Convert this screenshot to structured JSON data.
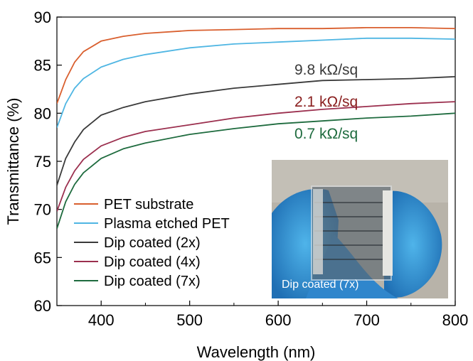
{
  "chart_data": {
    "type": "line",
    "xlabel": "Wavelength (nm)",
    "ylabel": "Transmittance (%)",
    "xlim": [
      350,
      800
    ],
    "ylim": [
      60,
      90
    ],
    "xticks": [
      400,
      500,
      600,
      700,
      800
    ],
    "yticks": [
      60,
      65,
      70,
      75,
      80,
      85,
      90
    ],
    "grid": false,
    "legend_position": "bottom-left",
    "series": [
      {
        "name": "PET substrate",
        "color": "#d95f2e",
        "x": [
          350,
          360,
          370,
          380,
          400,
          425,
          450,
          500,
          550,
          600,
          650,
          700,
          750,
          800
        ],
        "y": [
          81.0,
          83.5,
          85.3,
          86.4,
          87.5,
          88.0,
          88.3,
          88.6,
          88.7,
          88.8,
          88.8,
          88.9,
          88.9,
          88.8
        ]
      },
      {
        "name": "Plasma etched PET",
        "color": "#4fb6e3",
        "x": [
          350,
          360,
          370,
          380,
          400,
          425,
          450,
          500,
          550,
          600,
          650,
          700,
          750,
          800
        ],
        "y": [
          78.5,
          81.0,
          82.6,
          83.6,
          84.8,
          85.6,
          86.1,
          86.8,
          87.2,
          87.4,
          87.6,
          87.8,
          87.8,
          87.7
        ]
      },
      {
        "name": "Dip coated (2x)",
        "color": "#3a3a3a",
        "x": [
          350,
          360,
          370,
          380,
          400,
          425,
          450,
          500,
          550,
          600,
          650,
          700,
          750,
          800
        ],
        "y": [
          72.5,
          75.3,
          77.0,
          78.3,
          79.8,
          80.6,
          81.2,
          82.0,
          82.6,
          83.0,
          83.4,
          83.5,
          83.6,
          83.8
        ]
      },
      {
        "name": "Dip coated (4x)",
        "color": "#9b2f4e",
        "x": [
          350,
          360,
          370,
          380,
          400,
          425,
          450,
          500,
          550,
          600,
          650,
          700,
          750,
          800
        ],
        "y": [
          69.8,
          72.3,
          74.0,
          75.2,
          76.6,
          77.5,
          78.1,
          78.8,
          79.5,
          80.0,
          80.4,
          80.7,
          81.0,
          81.2
        ]
      },
      {
        "name": "Dip coated (7x)",
        "color": "#1e6b3e",
        "x": [
          350,
          360,
          370,
          380,
          400,
          425,
          450,
          500,
          550,
          600,
          650,
          700,
          750,
          800
        ],
        "y": [
          68.0,
          70.8,
          72.6,
          73.8,
          75.3,
          76.3,
          76.9,
          77.8,
          78.4,
          78.9,
          79.2,
          79.5,
          79.7,
          80.0
        ]
      }
    ],
    "annotations": [
      {
        "text": "9.8 kΩ/sq",
        "color": "#3a3a3a"
      },
      {
        "text": "2.1 kΩ/sq",
        "color": "#8a1f1f"
      },
      {
        "text": "0.7 kΩ/sq",
        "color": "#1e6b3e"
      }
    ],
    "inset": {
      "caption": "Dip coated (7x)"
    }
  }
}
